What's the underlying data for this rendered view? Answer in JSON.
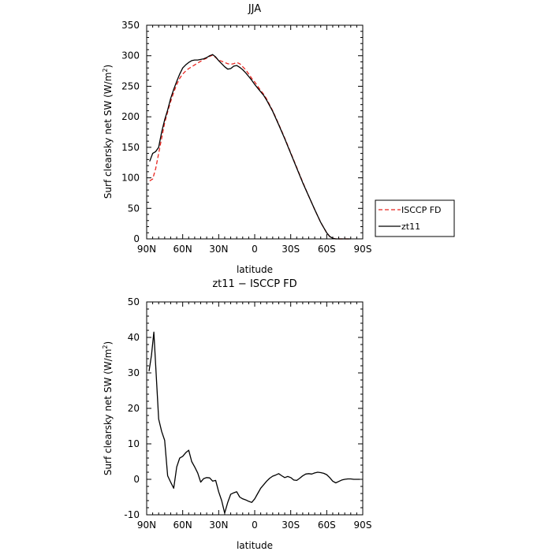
{
  "chart_data": [
    {
      "type": "line",
      "title": "JJA",
      "xlabel": "latitude",
      "ylabel_main": "Surf clearsky net SW (W/m",
      "ylabel_sup": "2",
      "ylabel_end": ")",
      "xlim": [
        -90,
        90
      ],
      "ylim": [
        0,
        350
      ],
      "xticks": [
        {
          "value": -90,
          "label": "90N"
        },
        {
          "value": -60,
          "label": "60N"
        },
        {
          "value": -30,
          "label": "30N"
        },
        {
          "value": 0,
          "label": "0"
        },
        {
          "value": 30,
          "label": "30S"
        },
        {
          "value": 60,
          "label": "60S"
        },
        {
          "value": 90,
          "label": "90S"
        }
      ],
      "yticks": [
        0,
        50,
        100,
        150,
        200,
        250,
        300,
        350
      ],
      "legend_position": "outside-right",
      "series": [
        {
          "name": "ISCCP FD",
          "color": "#e8251f",
          "dash": "dashed",
          "x": [
            -87.5,
            -85,
            -82.5,
            -80,
            -77.5,
            -75,
            -72.5,
            -70,
            -67.5,
            -65,
            -62.5,
            -60,
            -57.5,
            -55,
            -52.5,
            -50,
            -47.5,
            -45,
            -42.5,
            -40,
            -37.5,
            -35,
            -32.5,
            -30,
            -27.5,
            -25,
            -22.5,
            -20,
            -17.5,
            -15,
            -12.5,
            -10,
            -7.5,
            -5,
            -2.5,
            0,
            2.5,
            5,
            7.5,
            10,
            15,
            20,
            25,
            30,
            35,
            40,
            45,
            50,
            55,
            60,
            62.5,
            65,
            67.5,
            70,
            75,
            80
          ],
          "y": [
            95,
            98,
            115,
            140,
            165,
            190,
            208,
            225,
            240,
            253,
            263,
            270,
            275,
            279,
            282,
            285,
            288,
            291,
            294,
            296,
            299,
            301,
            297,
            293,
            291,
            289,
            287,
            286,
            287,
            289,
            287,
            282,
            277,
            270,
            263,
            257,
            250,
            243,
            237,
            229,
            210,
            188,
            165,
            141,
            117,
            93,
            70,
            48,
            27,
            10,
            4,
            1,
            0,
            0,
            0,
            0
          ]
        },
        {
          "name": "zt11",
          "color": "#000000",
          "dash": "solid",
          "x": [
            -87.5,
            -85,
            -82.5,
            -80,
            -77.5,
            -75,
            -72.5,
            -70,
            -67.5,
            -65,
            -62.5,
            -60,
            -57.5,
            -55,
            -52.5,
            -50,
            -47.5,
            -45,
            -42.5,
            -40,
            -37.5,
            -35,
            -32.5,
            -30,
            -27.5,
            -25,
            -22.5,
            -20,
            -17.5,
            -15,
            -12.5,
            -10,
            -7.5,
            -5,
            -2.5,
            0,
            2.5,
            5,
            7.5,
            10,
            15,
            20,
            25,
            30,
            35,
            40,
            45,
            50,
            55,
            60,
            62.5,
            65,
            67.5,
            70,
            75,
            80
          ],
          "y": [
            127,
            140,
            143,
            150,
            175,
            195,
            211,
            230,
            245,
            258,
            270,
            280,
            285,
            289,
            292,
            293,
            293,
            294,
            295,
            297,
            300,
            302,
            298,
            292,
            287,
            282,
            278,
            279,
            283,
            284,
            281,
            277,
            272,
            266,
            260,
            253,
            247,
            241,
            235,
            227,
            209,
            187,
            164,
            140,
            116,
            92,
            70,
            48,
            27,
            10,
            4,
            1,
            0,
            0,
            0,
            0
          ]
        }
      ]
    },
    {
      "type": "line",
      "title": "zt11 − ISCCP FD",
      "xlabel": "latitude",
      "ylabel_main": "Surf clearsky net SW (W/m",
      "ylabel_sup": "2",
      "ylabel_end": ")",
      "xlim": [
        -90,
        90
      ],
      "ylim": [
        -10,
        50
      ],
      "xticks": [
        {
          "value": -90,
          "label": "90N"
        },
        {
          "value": -60,
          "label": "60N"
        },
        {
          "value": -30,
          "label": "30N"
        },
        {
          "value": 0,
          "label": "0"
        },
        {
          "value": 30,
          "label": "30S"
        },
        {
          "value": 60,
          "label": "60S"
        },
        {
          "value": 90,
          "label": "90S"
        }
      ],
      "yticks": [
        -10,
        0,
        10,
        20,
        30,
        40,
        50
      ],
      "series": [
        {
          "color": "#000000",
          "dash": "solid",
          "x": [
            -88,
            -86,
            -84,
            -82,
            -80,
            -77.5,
            -75,
            -72.5,
            -70,
            -67.5,
            -65,
            -62.5,
            -60,
            -57.5,
            -55,
            -52.5,
            -50,
            -47.5,
            -45,
            -42.5,
            -40,
            -37.5,
            -35,
            -32.5,
            -30,
            -27.5,
            -25,
            -22.5,
            -20,
            -17.5,
            -15,
            -12.5,
            -10,
            -7.5,
            -5,
            -2.5,
            0,
            2.5,
            5,
            7.5,
            10,
            12.5,
            15,
            17.5,
            20,
            22.5,
            25,
            27.5,
            30,
            32.5,
            35,
            37.5,
            40,
            42.5,
            45,
            47.5,
            50,
            52.5,
            55,
            57.5,
            60,
            62.5,
            65,
            67.5,
            70,
            72.5,
            75,
            77.5,
            80,
            82.5,
            85,
            87.5
          ],
          "y": [
            30.5,
            35,
            41.5,
            29,
            17,
            13.5,
            11,
            1,
            -0.8,
            -2.5,
            3.5,
            6,
            6.5,
            7.5,
            8.2,
            5,
            3.5,
            1.8,
            -0.8,
            0.2,
            0.5,
            0.4,
            -0.5,
            -0.3,
            -3.5,
            -6,
            -9.5,
            -6.5,
            -4.2,
            -3.8,
            -3.5,
            -5,
            -5.5,
            -5.8,
            -6.2,
            -6.5,
            -5.5,
            -4,
            -2.5,
            -1.5,
            -0.5,
            0.3,
            0.9,
            1.2,
            1.6,
            1,
            0.5,
            0.8,
            0.5,
            -0.2,
            -0.3,
            0.3,
            1,
            1.5,
            1.6,
            1.5,
            1.8,
            2,
            1.9,
            1.7,
            1.3,
            0.5,
            -0.5,
            -1,
            -0.6,
            -0.2,
            0,
            0.1,
            0.1,
            0,
            0,
            0
          ]
        }
      ]
    }
  ]
}
